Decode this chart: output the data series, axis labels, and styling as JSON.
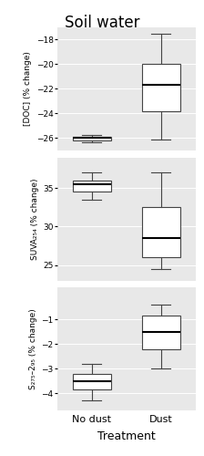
{
  "title": "Soil water",
  "xlabel": "Treatment",
  "categories": [
    "No dust",
    "Dust"
  ],
  "fig_facecolor": "#ffffff",
  "panel_facecolor": "#e8e8e8",
  "panels": [
    {
      "ylabel": "[DOC] (% change)",
      "no_dust": {
        "whisker_low": -26.3,
        "q1": -26.15,
        "median": -26.0,
        "q3": -25.9,
        "whisker_high": -25.75
      },
      "dust": {
        "whisker_low": -26.1,
        "q1": -23.8,
        "median": -21.7,
        "q3": -20.0,
        "whisker_high": -17.5
      },
      "ylim": [
        -27.0,
        -17.0
      ],
      "yticks": [
        -26,
        -24,
        -22,
        -20,
        -18
      ]
    },
    {
      "ylabel": "SUVA₂₅₄ (% change)",
      "no_dust": {
        "whisker_low": 33.5,
        "q1": 34.5,
        "median": 35.5,
        "q3": 36.0,
        "whisker_high": 37.0
      },
      "dust": {
        "whisker_low": 24.5,
        "q1": 26.0,
        "median": 28.5,
        "q3": 32.5,
        "whisker_high": 37.0
      },
      "ylim": [
        23.0,
        39.0
      ],
      "yticks": [
        25,
        30,
        35
      ]
    },
    {
      "ylabel": "S₂₇₅–2₉₅ (% change)",
      "no_dust": {
        "whisker_low": -4.3,
        "q1": -3.85,
        "median": -3.5,
        "q3": -3.2,
        "whisker_high": -2.8
      },
      "dust": {
        "whisker_low": -3.0,
        "q1": -2.2,
        "median": -1.5,
        "q3": -0.85,
        "whisker_high": -0.4
      },
      "ylim": [
        -4.7,
        0.3
      ],
      "yticks": [
        -4,
        -3,
        -2,
        -1
      ]
    }
  ]
}
